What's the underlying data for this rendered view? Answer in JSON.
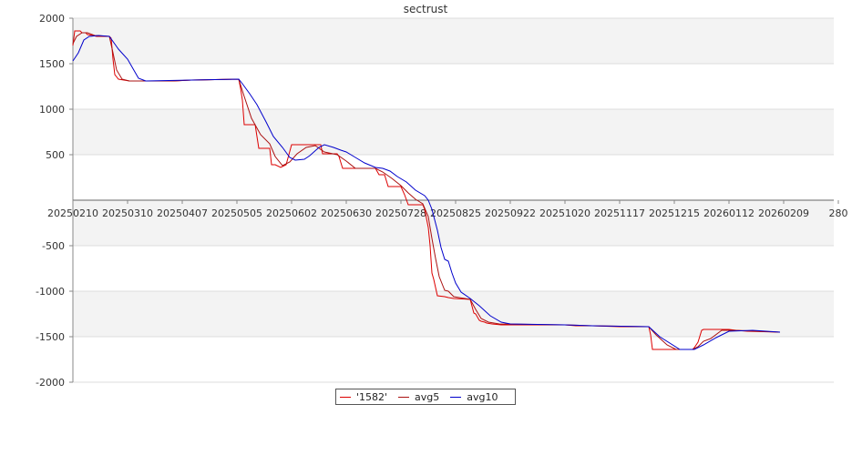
{
  "chart_data": {
    "type": "line",
    "title": "sectrust",
    "xlabel": "",
    "ylabel": "",
    "ylim": [
      -2000,
      2000
    ],
    "y_ticks": [
      2000,
      1500,
      1000,
      500,
      -500,
      -1000,
      -1500,
      -2000
    ],
    "x_tick_labels": [
      "20250210",
      "20250310",
      "20250407",
      "20250505",
      "20250602",
      "20250630",
      "20250728",
      "20250825",
      "20250922",
      "20251020",
      "20251117",
      "20251215",
      "20260112",
      "20260209",
      "280"
    ],
    "grid": true,
    "legend_position": "bottom-center",
    "colors": {
      "s1582": "#dd0000",
      "avg5": "#aa1111",
      "avg10": "#0000cc"
    },
    "series": [
      {
        "name": "'1582'",
        "points": [
          [
            0,
            1700
          ],
          [
            2,
            1860
          ],
          [
            8,
            1860
          ],
          [
            10,
            1840
          ],
          [
            14,
            1840
          ],
          [
            16,
            1820
          ],
          [
            22,
            1810
          ],
          [
            26,
            1800
          ],
          [
            40,
            1800
          ],
          [
            42,
            1780
          ],
          [
            44,
            1550
          ],
          [
            46,
            1380
          ],
          [
            50,
            1330
          ],
          [
            56,
            1320
          ],
          [
            62,
            1310
          ],
          [
            110,
            1310
          ],
          [
            130,
            1320
          ],
          [
            182,
            1330
          ],
          [
            184,
            1230
          ],
          [
            186,
            1100
          ],
          [
            188,
            830
          ],
          [
            200,
            830
          ],
          [
            202,
            700
          ],
          [
            204,
            570
          ],
          [
            216,
            570
          ],
          [
            218,
            390
          ],
          [
            222,
            390
          ],
          [
            228,
            360
          ],
          [
            234,
            390
          ],
          [
            240,
            610
          ],
          [
            272,
            610
          ],
          [
            274,
            510
          ],
          [
            290,
            510
          ],
          [
            292,
            480
          ],
          [
            296,
            350
          ],
          [
            332,
            350
          ],
          [
            336,
            280
          ],
          [
            342,
            280
          ],
          [
            346,
            150
          ],
          [
            360,
            150
          ],
          [
            364,
            60
          ],
          [
            368,
            -50
          ],
          [
            384,
            -50
          ],
          [
            386,
            -100
          ],
          [
            390,
            -300
          ],
          [
            392,
            -500
          ],
          [
            394,
            -800
          ],
          [
            396,
            -870
          ],
          [
            400,
            -1050
          ],
          [
            408,
            -1060
          ],
          [
            412,
            -1070
          ],
          [
            418,
            -1080
          ],
          [
            436,
            -1090
          ],
          [
            440,
            -1240
          ],
          [
            442,
            -1250
          ],
          [
            446,
            -1320
          ],
          [
            448,
            -1330
          ],
          [
            452,
            -1340
          ],
          [
            454,
            -1350
          ],
          [
            460,
            -1360
          ],
          [
            470,
            -1370
          ],
          [
            540,
            -1370
          ],
          [
            552,
            -1380
          ],
          [
            570,
            -1380
          ],
          [
            600,
            -1390
          ],
          [
            632,
            -1390
          ],
          [
            634,
            -1480
          ],
          [
            636,
            -1640
          ],
          [
            680,
            -1640
          ],
          [
            682,
            -1620
          ],
          [
            686,
            -1560
          ],
          [
            690,
            -1430
          ],
          [
            692,
            -1420
          ],
          [
            720,
            -1420
          ],
          [
            728,
            -1430
          ],
          [
            740,
            -1440
          ],
          [
            776,
            -1450
          ]
        ]
      },
      {
        "name": "avg5",
        "points": [
          [
            0,
            1720
          ],
          [
            4,
            1800
          ],
          [
            10,
            1840
          ],
          [
            16,
            1840
          ],
          [
            24,
            1810
          ],
          [
            40,
            1800
          ],
          [
            44,
            1620
          ],
          [
            48,
            1430
          ],
          [
            54,
            1330
          ],
          [
            62,
            1310
          ],
          [
            110,
            1310
          ],
          [
            130,
            1320
          ],
          [
            182,
            1330
          ],
          [
            188,
            1140
          ],
          [
            196,
            900
          ],
          [
            206,
            720
          ],
          [
            216,
            620
          ],
          [
            222,
            480
          ],
          [
            230,
            380
          ],
          [
            238,
            420
          ],
          [
            246,
            510
          ],
          [
            256,
            580
          ],
          [
            266,
            600
          ],
          [
            276,
            530
          ],
          [
            290,
            500
          ],
          [
            300,
            430
          ],
          [
            310,
            350
          ],
          [
            332,
            350
          ],
          [
            340,
            310
          ],
          [
            350,
            240
          ],
          [
            360,
            160
          ],
          [
            368,
            80
          ],
          [
            376,
            10
          ],
          [
            384,
            -40
          ],
          [
            390,
            -180
          ],
          [
            394,
            -420
          ],
          [
            398,
            -640
          ],
          [
            402,
            -840
          ],
          [
            408,
            -990
          ],
          [
            412,
            -1000
          ],
          [
            418,
            -1060
          ],
          [
            436,
            -1090
          ],
          [
            442,
            -1200
          ],
          [
            448,
            -1300
          ],
          [
            456,
            -1340
          ],
          [
            468,
            -1360
          ],
          [
            540,
            -1370
          ],
          [
            570,
            -1380
          ],
          [
            632,
            -1390
          ],
          [
            640,
            -1480
          ],
          [
            652,
            -1590
          ],
          [
            662,
            -1640
          ],
          [
            680,
            -1640
          ],
          [
            686,
            -1610
          ],
          [
            692,
            -1550
          ],
          [
            700,
            -1520
          ],
          [
            712,
            -1430
          ],
          [
            728,
            -1430
          ],
          [
            776,
            -1450
          ]
        ]
      },
      {
        "name": "avg10",
        "points": [
          [
            0,
            1530
          ],
          [
            6,
            1620
          ],
          [
            12,
            1760
          ],
          [
            18,
            1800
          ],
          [
            28,
            1810
          ],
          [
            40,
            1800
          ],
          [
            50,
            1660
          ],
          [
            60,
            1550
          ],
          [
            68,
            1410
          ],
          [
            72,
            1340
          ],
          [
            80,
            1310
          ],
          [
            130,
            1320
          ],
          [
            182,
            1330
          ],
          [
            186,
            1280
          ],
          [
            194,
            1170
          ],
          [
            202,
            1050
          ],
          [
            212,
            860
          ],
          [
            220,
            700
          ],
          [
            230,
            580
          ],
          [
            238,
            470
          ],
          [
            244,
            440
          ],
          [
            254,
            450
          ],
          [
            260,
            490
          ],
          [
            270,
            580
          ],
          [
            276,
            610
          ],
          [
            286,
            580
          ],
          [
            294,
            550
          ],
          [
            300,
            530
          ],
          [
            310,
            470
          ],
          [
            320,
            410
          ],
          [
            332,
            360
          ],
          [
            340,
            350
          ],
          [
            348,
            320
          ],
          [
            356,
            260
          ],
          [
            366,
            200
          ],
          [
            376,
            110
          ],
          [
            386,
            50
          ],
          [
            390,
            0
          ],
          [
            394,
            -100
          ],
          [
            400,
            -330
          ],
          [
            404,
            -520
          ],
          [
            408,
            -650
          ],
          [
            412,
            -670
          ],
          [
            416,
            -800
          ],
          [
            420,
            -910
          ],
          [
            426,
            -1010
          ],
          [
            436,
            -1080
          ],
          [
            446,
            -1160
          ],
          [
            458,
            -1270
          ],
          [
            470,
            -1340
          ],
          [
            480,
            -1360
          ],
          [
            540,
            -1370
          ],
          [
            570,
            -1380
          ],
          [
            632,
            -1390
          ],
          [
            644,
            -1500
          ],
          [
            666,
            -1640
          ],
          [
            682,
            -1640
          ],
          [
            692,
            -1590
          ],
          [
            706,
            -1510
          ],
          [
            720,
            -1440
          ],
          [
            746,
            -1430
          ],
          [
            776,
            -1450
          ]
        ]
      }
    ]
  }
}
